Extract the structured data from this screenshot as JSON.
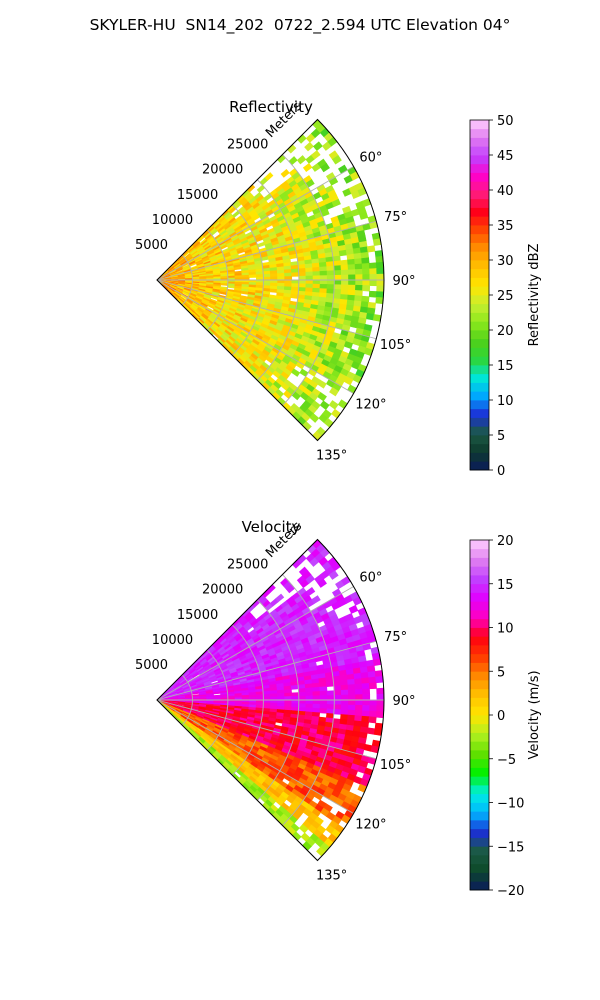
{
  "title": "SKYLER-HU  SN14_202  0722_2.594 UTC Elevation 04°",
  "colors": {
    "reflectivity_stops": [
      "#0a1a5c",
      "#0e3a2e",
      "#1b5a44",
      "#1b2fd6",
      "#00a6ff",
      "#00e6d6",
      "#2cd63a",
      "#4fd01a",
      "#8be81c",
      "#c8ee30",
      "#ffe600",
      "#ffc200",
      "#ff9200",
      "#ff4a00",
      "#ff0018",
      "#ff1a7a",
      "#ff00cc",
      "#c040ff",
      "#e078f0",
      "#ffd0ff"
    ],
    "velocity_stops": [
      "#0a1a5c",
      "#0d4a2a",
      "#1b5a44",
      "#1b2fd6",
      "#00b8ff",
      "#00f0e0",
      "#00f000",
      "#60e000",
      "#b0f020",
      "#ffe600",
      "#ffc200",
      "#ff8a00",
      "#ff3a00",
      "#ff0010",
      "#ff00c0",
      "#e000ff",
      "#c040ff",
      "#e080f0",
      "#ffd0ff"
    ]
  },
  "chart_data": [
    {
      "type": "heatmap",
      "subtype": "polar sector (PPI)",
      "title": "Reflectivity",
      "range_label": "Meters",
      "range_ticks": [
        5000,
        10000,
        15000,
        20000,
        25000
      ],
      "range_tick_labels": [
        "5000",
        "10000",
        "15000",
        "20000",
        "25000"
      ],
      "azimuth_ticks": [
        60,
        75,
        90,
        105,
        120,
        135
      ],
      "azimuth_tick_labels": [
        "60°",
        "75°",
        "90°",
        "105°",
        "120°",
        "135°"
      ],
      "azimuth_range": [
        45,
        135
      ],
      "max_range": 32000,
      "grid": true,
      "colorbar": {
        "label": "Reflectivity dBZ",
        "range": [
          0,
          50
        ],
        "ticks": [
          0,
          5,
          10,
          15,
          20,
          25,
          30,
          35,
          40,
          45,
          50
        ],
        "tick_labels": [
          "0",
          "5",
          "10",
          "15",
          "20",
          "25",
          "30",
          "35",
          "40",
          "45",
          "50"
        ]
      },
      "field_description": "mostly 20-32 dBZ, higher (35-40) near the radar and along radial streaks at 90° and ~100°; sparse returns near the outer edge"
    },
    {
      "type": "heatmap",
      "subtype": "polar sector (PPI)",
      "title": "Velocity",
      "range_label": "Meters",
      "range_ticks": [
        5000,
        10000,
        15000,
        20000,
        25000
      ],
      "range_tick_labels": [
        "5000",
        "10000",
        "15000",
        "20000",
        "25000"
      ],
      "azimuth_ticks": [
        60,
        75,
        90,
        105,
        120,
        135
      ],
      "azimuth_tick_labels": [
        "60°",
        "75°",
        "90°",
        "105°",
        "120°",
        "135°"
      ],
      "azimuth_range": [
        45,
        135
      ],
      "max_range": 32000,
      "grid": true,
      "colorbar": {
        "label": "Velocity (m/s)",
        "range": [
          -20,
          20
        ],
        "ticks": [
          -20,
          -15,
          -10,
          -5,
          0,
          5,
          10,
          15,
          20
        ],
        "tick_labels": [
          "−20",
          "−15",
          "−10",
          "−5",
          "0",
          "5",
          "10",
          "15",
          "20"
        ]
      },
      "field_description": "about +15 m/s toward 60-75°, +12 to +14 near 90°, +8 to +10 around 100-115°, 0 to +3 near 125-135°, about -3 along the 135° edge"
    }
  ]
}
